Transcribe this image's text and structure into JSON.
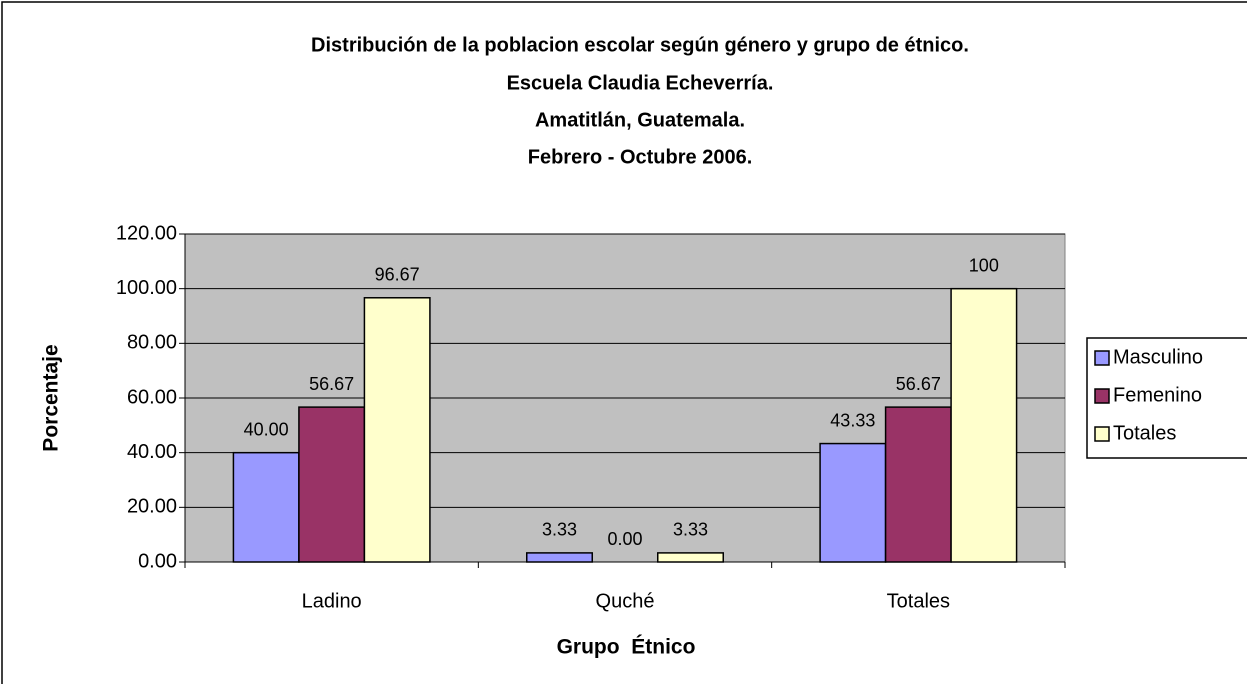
{
  "chart_data": {
    "type": "bar",
    "title": [
      "Distribución de la poblacion escolar según género y grupo de étnico.",
      "Escuela Claudia Echeverría.",
      "Amatitlán, Guatemala.",
      "Febrero - Octubre 2006."
    ],
    "x_label": "Grupo  Étnico",
    "y_label": "Porcentaje",
    "categories": [
      "Ladino",
      "Quché",
      "Totales"
    ],
    "series": [
      {
        "name": "Masculino",
        "color": "#9999ff",
        "values": [
          40,
          3.33,
          43.33
        ],
        "value_labels": [
          "40.00",
          "3.33",
          "43.33"
        ]
      },
      {
        "name": "Femenino",
        "color": "#993366",
        "values": [
          56.67,
          0,
          56.67
        ],
        "value_labels": [
          "56.67",
          "0.00",
          "56.67"
        ]
      },
      {
        "name": "Totales",
        "color": "#ffffcc",
        "values": [
          96.67,
          3.33,
          100
        ],
        "value_labels": [
          "96.67",
          "3.33",
          "100"
        ]
      }
    ],
    "ylim": [
      0,
      120
    ],
    "yticks": [
      {
        "value": 0,
        "label": "0.00"
      },
      {
        "value": 20,
        "label": "20.00"
      },
      {
        "value": 40,
        "label": "40.00"
      },
      {
        "value": 60,
        "label": "60.00"
      },
      {
        "value": 80,
        "label": "80.00"
      },
      {
        "value": 100,
        "label": "100.00"
      },
      {
        "value": 120,
        "label": "120.00"
      }
    ],
    "grid": true,
    "legend": "right",
    "plot_background": "#c0c0c0"
  }
}
